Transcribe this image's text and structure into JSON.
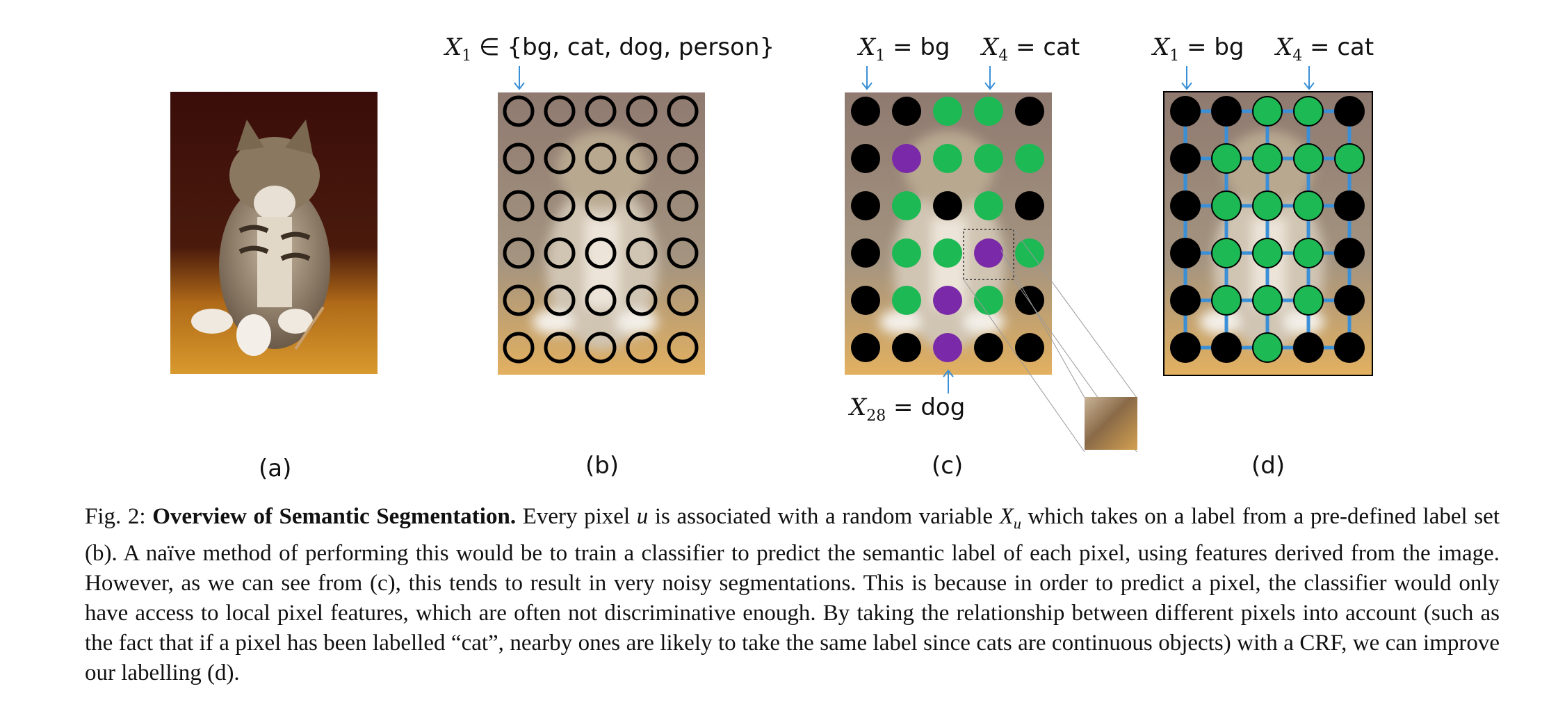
{
  "figure": {
    "panels": {
      "a": {
        "letter": "(a)"
      },
      "b": {
        "letter": "(b)",
        "label_var": "X",
        "label_sub": "1",
        "label_rest": " ∈ {bg, cat, dog, person}"
      },
      "c": {
        "letter": "(c)",
        "label1_var": "X",
        "label1_sub": "1",
        "label1_rest": " = bg",
        "label2_var": "X",
        "label2_sub": "4",
        "label2_rest": " = cat",
        "label3_var": "X",
        "label3_sub": "28",
        "label3_rest": " = dog"
      },
      "d": {
        "letter": "(d)",
        "label1_var": "X",
        "label1_sub": "1",
        "label1_rest": " = bg",
        "label2_var": "X",
        "label2_sub": "4",
        "label2_rest": " = cat"
      }
    },
    "grid_c": [
      [
        "bg",
        "bg",
        "cat",
        "cat",
        "bg"
      ],
      [
        "bg",
        "dog",
        "cat",
        "cat",
        "cat"
      ],
      [
        "bg",
        "cat",
        "bg",
        "cat",
        "bg"
      ],
      [
        "bg",
        "cat",
        "cat",
        "dog",
        "cat"
      ],
      [
        "bg",
        "cat",
        "dog",
        "cat",
        "bg"
      ],
      [
        "bg",
        "bg",
        "dog",
        "bg",
        "bg"
      ]
    ],
    "grid_d": [
      [
        "bg",
        "bg",
        "cat",
        "cat",
        "bg"
      ],
      [
        "bg",
        "cat",
        "cat",
        "cat",
        "cat"
      ],
      [
        "bg",
        "cat",
        "cat",
        "cat",
        "bg"
      ],
      [
        "bg",
        "cat",
        "cat",
        "cat",
        "bg"
      ],
      [
        "bg",
        "cat",
        "cat",
        "cat",
        "bg"
      ],
      [
        "bg",
        "bg",
        "cat",
        "bg",
        "bg"
      ]
    ],
    "colors": {
      "bg": "#000000",
      "cat": "#1db954",
      "dog": "#7a2aa8",
      "edge": "#3a8fd6",
      "arrow": "#3a8fd6"
    }
  },
  "caption": {
    "fig": "Fig. 2: ",
    "title": "Overview of Semantic Segmentation.",
    "t1": " Every pixel ",
    "u": "u",
    "t2": " is associated with a random variable ",
    "xu_var": "X",
    "xu_sub": "u",
    "t3": " which takes on a label from a pre-defined label set (b). A naïve method of performing this would be to train a classifier to predict the semantic label of each pixel, using features derived from the image. However, as we can see from (c), this tends to result in very noisy segmentations. This is because in order to predict a pixel, the classifier would only have access to local pixel features, which are often not discriminative enough. By taking the relationship between different pixels into account (such as the fact that if a pixel has been labelled “cat”, nearby ones are likely to take the same label since cats are continuous objects) with a CRF, we can improve our labelling (d)."
  }
}
